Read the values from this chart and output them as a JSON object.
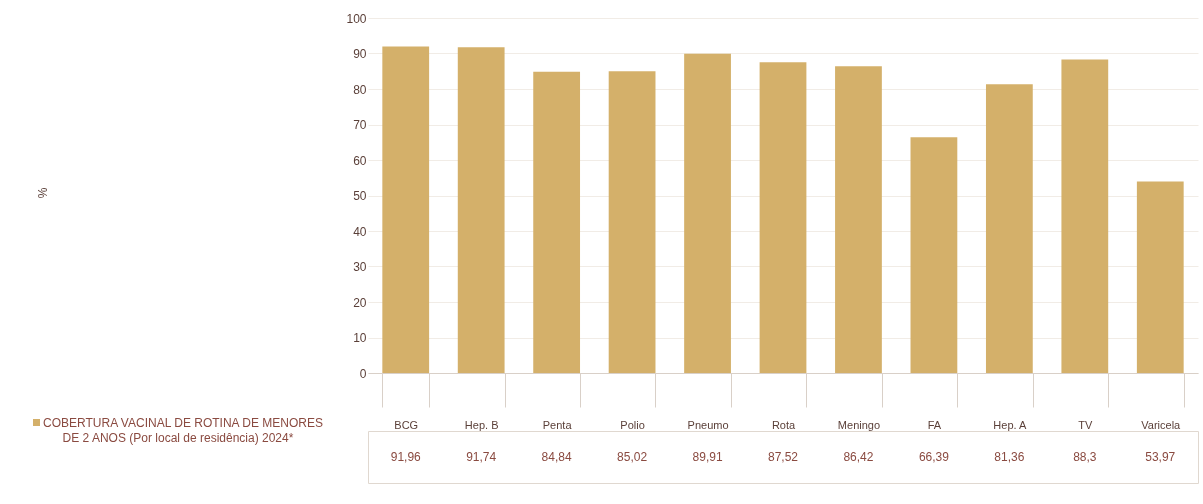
{
  "chart_data": {
    "type": "bar",
    "annotations": [
      "%"
    ],
    "categories": [
      "BCG",
      "Hep. B",
      "Penta",
      "Polio",
      "Pneumo",
      "Rota",
      "Meningo",
      "FA",
      "Hep. A",
      "TV",
      "Varicela"
    ],
    "series": [
      {
        "name": "COBERTURA VACINAL DE ROTINA DE MENORES DE 2 ANOS (Por local de residência) 2024*",
        "color": "#d4b06a",
        "values": [
          91.96,
          91.74,
          84.84,
          85.02,
          89.91,
          87.52,
          86.42,
          66.39,
          81.36,
          88.3,
          53.97
        ],
        "value_labels": [
          "91,96",
          "91,74",
          "84,84",
          "85,02",
          "89,91",
          "87,52",
          "86,42",
          "66,39",
          "81,36",
          "88,3",
          "53,97"
        ]
      }
    ],
    "ylim": [
      0,
      100
    ],
    "yticks": [
      0,
      10,
      20,
      30,
      40,
      50,
      60,
      70,
      80,
      90,
      100
    ],
    "grid": "y",
    "legend": "bottom left"
  }
}
